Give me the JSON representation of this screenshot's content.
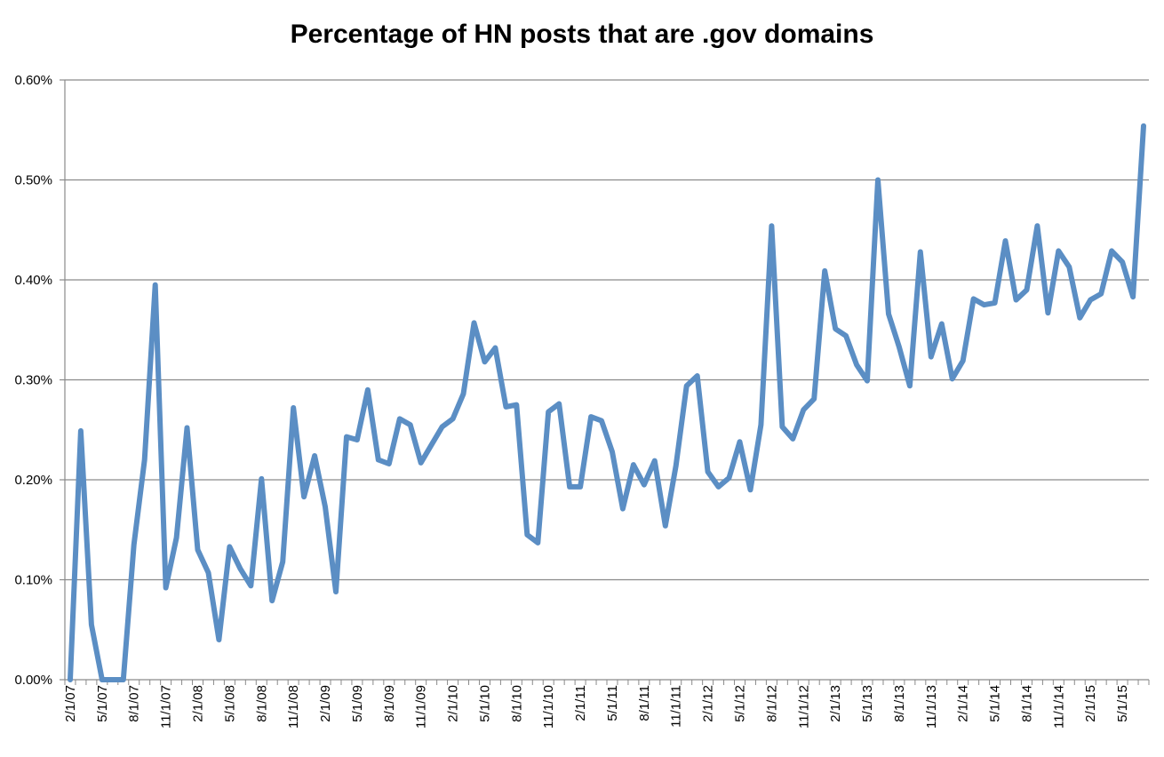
{
  "chart_data": {
    "type": "line",
    "title": "Percentage of HN posts that are .gov domains",
    "xlabel": "",
    "ylabel": "",
    "ylim": [
      0,
      0.6
    ],
    "y_ticks": [
      "0.00%",
      "0.10%",
      "0.20%",
      "0.30%",
      "0.40%",
      "0.50%",
      "0.60%"
    ],
    "y_tick_values": [
      0,
      0.1,
      0.2,
      0.3,
      0.4,
      0.5,
      0.6
    ],
    "x_tick_labels": [
      "2/1/07",
      "5/1/07",
      "8/1/07",
      "11/1/07",
      "2/1/08",
      "5/1/08",
      "8/1/08",
      "11/1/08",
      "2/1/09",
      "5/1/09",
      "8/1/09",
      "11/1/09",
      "2/1/10",
      "5/1/10",
      "8/1/10",
      "11/1/10",
      "2/1/11",
      "5/1/11",
      "8/1/11",
      "11/1/11",
      "2/1/12",
      "5/1/12",
      "8/1/12",
      "11/1/12",
      "2/1/13",
      "5/1/13",
      "8/1/13",
      "11/1/13",
      "2/1/14",
      "5/1/14",
      "8/1/14",
      "11/1/14",
      "2/1/15",
      "5/1/15"
    ],
    "grid": true,
    "legend": "none",
    "line_color": "#5b8ec4",
    "series": [
      {
        "x": [
          "2/1/07",
          "3/1/07",
          "4/1/07",
          "5/1/07",
          "6/1/07",
          "7/1/07",
          "8/1/07",
          "9/1/07",
          "10/1/07",
          "11/1/07",
          "12/1/07",
          "1/1/08",
          "2/1/08",
          "3/1/08",
          "4/1/08",
          "5/1/08",
          "6/1/08",
          "7/1/08",
          "8/1/08",
          "9/1/08",
          "10/1/08",
          "11/1/08",
          "12/1/08",
          "1/1/09",
          "2/1/09",
          "3/1/09",
          "4/1/09",
          "5/1/09",
          "6/1/09",
          "7/1/09",
          "8/1/09",
          "9/1/09",
          "10/1/09",
          "11/1/09",
          "12/1/09",
          "1/1/10",
          "2/1/10",
          "3/1/10",
          "4/1/10",
          "5/1/10",
          "6/1/10",
          "7/1/10",
          "8/1/10",
          "9/1/10",
          "10/1/10",
          "11/1/10",
          "12/1/10",
          "1/1/11",
          "2/1/11",
          "3/1/11",
          "4/1/11",
          "5/1/11",
          "6/1/11",
          "7/1/11",
          "8/1/11",
          "9/1/11",
          "10/1/11",
          "11/1/11",
          "12/1/11",
          "1/1/12",
          "2/1/12",
          "3/1/12",
          "4/1/12",
          "5/1/12",
          "6/1/12",
          "7/1/12",
          "8/1/12",
          "9/1/12",
          "10/1/12",
          "11/1/12",
          "12/1/12",
          "1/1/13",
          "2/1/13",
          "3/1/13",
          "4/1/13",
          "5/1/13",
          "6/1/13",
          "7/1/13",
          "8/1/13",
          "9/1/13",
          "10/1/13",
          "11/1/13",
          "12/1/13",
          "1/1/14",
          "2/1/14",
          "3/1/14",
          "4/1/14",
          "5/1/14",
          "6/1/14",
          "7/1/14",
          "8/1/14",
          "9/1/14",
          "10/1/14",
          "11/1/14",
          "12/1/14",
          "1/1/15",
          "2/1/15",
          "3/1/15",
          "4/1/15",
          "5/1/15",
          "6/1/15",
          "7/1/15"
        ],
        "values": [
          0.0,
          0.249,
          0.055,
          0.0,
          0.0,
          0.0,
          0.135,
          0.22,
          0.395,
          0.092,
          0.142,
          0.252,
          0.13,
          0.107,
          0.04,
          0.133,
          0.111,
          0.094,
          0.201,
          0.079,
          0.118,
          0.272,
          0.183,
          0.224,
          0.173,
          0.088,
          0.243,
          0.24,
          0.29,
          0.22,
          0.216,
          0.261,
          0.255,
          0.217,
          0.235,
          0.253,
          0.261,
          0.286,
          0.357,
          0.318,
          0.332,
          0.273,
          0.275,
          0.145,
          0.137,
          0.268,
          0.276,
          0.193,
          0.193,
          0.263,
          0.259,
          0.228,
          0.171,
          0.215,
          0.195,
          0.219,
          0.154,
          0.214,
          0.294,
          0.304,
          0.208,
          0.193,
          0.202,
          0.238,
          0.19,
          0.255,
          0.454,
          0.253,
          0.241,
          0.27,
          0.281,
          0.409,
          0.351,
          0.344,
          0.315,
          0.299,
          0.5,
          0.366,
          0.333,
          0.294,
          0.428,
          0.323,
          0.356,
          0.301,
          0.319,
          0.381,
          0.375,
          0.377,
          0.439,
          0.38,
          0.39,
          0.454,
          0.367,
          0.429,
          0.413,
          0.362,
          0.38,
          0.386,
          0.429,
          0.418,
          0.383,
          0.554
        ]
      }
    ]
  }
}
